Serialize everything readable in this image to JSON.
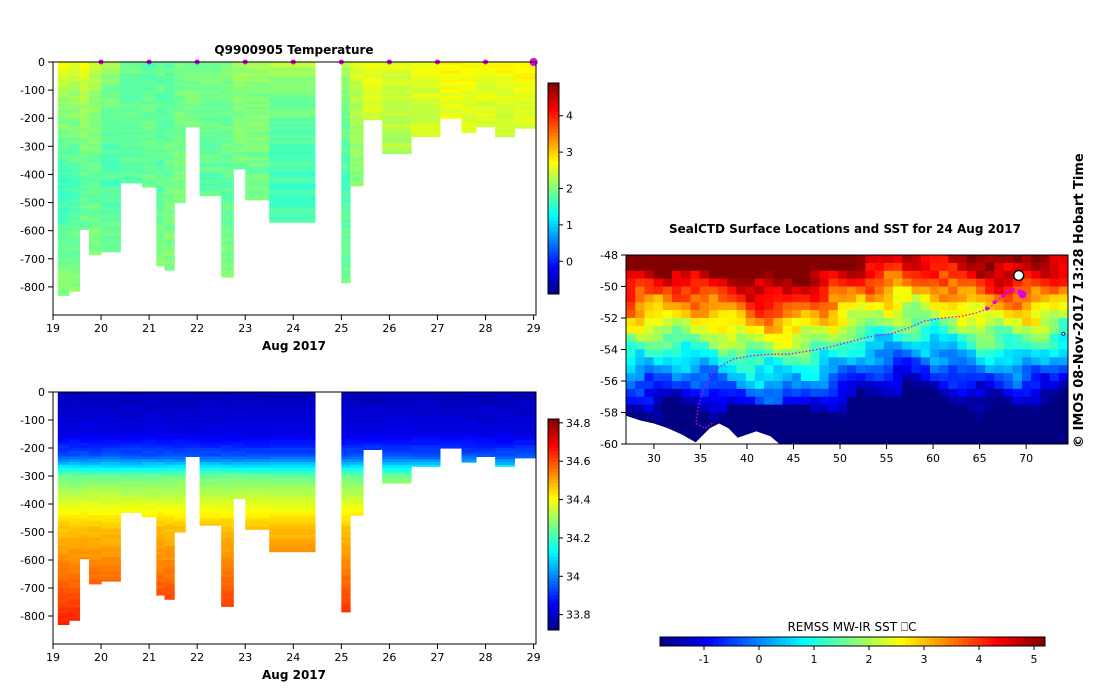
{
  "side_label": "© IMOS 08-Nov-2017 13:28 Hobart Time",
  "chart_data": [
    {
      "id": "temperature",
      "type": "heatmap",
      "title": "Q9900905  Temperature",
      "xlabel": "Aug 2017",
      "ylabel": "",
      "xlim": [
        19,
        29.05
      ],
      "ylim": [
        -900,
        0
      ],
      "xticks": [
        19,
        20,
        21,
        22,
        23,
        24,
        25,
        26,
        27,
        28,
        29
      ],
      "yticks": [
        0,
        -100,
        -200,
        -300,
        -400,
        -500,
        -600,
        -700,
        -800
      ],
      "colorbar": {
        "min": -0.9,
        "max": 4.9,
        "ticks": [
          0,
          1,
          2,
          3,
          4
        ],
        "palette": "jet"
      },
      "profile_markers": [
        20.0,
        21.0,
        22.0,
        23.0,
        24.0,
        25.0,
        26.0,
        27.0,
        28.0,
        29.0
      ],
      "profiles": [
        {
          "x0": 19.1,
          "x1": 19.33,
          "maxDepth": 830,
          "top": 2.8,
          "mid": 1.6,
          "deep": 2.1
        },
        {
          "x0": 19.33,
          "x1": 19.55,
          "maxDepth": 815,
          "top": 2.6,
          "mid": 1.7,
          "deep": 2.1
        },
        {
          "x0": 19.55,
          "x1": 19.75,
          "maxDepth": 595,
          "top": 2.7,
          "mid": 1.8,
          "deep": 2.1
        },
        {
          "x0": 19.75,
          "x1": 20.0,
          "maxDepth": 685,
          "top": 2.5,
          "mid": 1.8,
          "deep": 2.2
        },
        {
          "x0": 20.0,
          "x1": 20.4,
          "maxDepth": 675,
          "top": 2.2,
          "mid": 1.7,
          "deep": 2.2
        },
        {
          "x0": 20.4,
          "x1": 20.85,
          "maxDepth": 430,
          "top": 1.9,
          "mid": 1.8,
          "deep": 2.0
        },
        {
          "x0": 20.85,
          "x1": 21.15,
          "maxDepth": 445,
          "top": 1.8,
          "mid": 1.9,
          "deep": 2.0
        },
        {
          "x0": 21.15,
          "x1": 21.32,
          "maxDepth": 725,
          "top": 1.9,
          "mid": 1.8,
          "deep": 2.1
        },
        {
          "x0": 21.32,
          "x1": 21.52,
          "maxDepth": 740,
          "top": 1.8,
          "mid": 1.9,
          "deep": 2.1
        },
        {
          "x0": 21.52,
          "x1": 21.75,
          "maxDepth": 500,
          "top": 1.9,
          "mid": 2.0,
          "deep": 2.1
        },
        {
          "x0": 21.75,
          "x1": 22.05,
          "maxDepth": 230,
          "top": 1.9,
          "mid": 2.0,
          "deep": 2.0
        },
        {
          "x0": 22.05,
          "x1": 22.5,
          "maxDepth": 475,
          "top": 2.0,
          "mid": 1.8,
          "deep": 2.1
        },
        {
          "x0": 22.5,
          "x1": 22.75,
          "maxDepth": 765,
          "top": 2.1,
          "mid": 1.8,
          "deep": 2.1
        },
        {
          "x0": 22.75,
          "x1": 23.0,
          "maxDepth": 380,
          "top": 2.2,
          "mid": 1.9,
          "deep": 2.0
        },
        {
          "x0": 23.0,
          "x1": 23.5,
          "maxDepth": 490,
          "top": 2.2,
          "mid": 1.9,
          "deep": 2.1
        },
        {
          "x0": 23.5,
          "x1": 24.45,
          "maxDepth": 570,
          "top": 2.3,
          "mid": 1.6,
          "deep": 2.0
        },
        {
          "x0": 25.0,
          "x1": 25.18,
          "maxDepth": 785,
          "top": 2.3,
          "mid": 1.7,
          "deep": 2.0
        },
        {
          "x0": 25.18,
          "x1": 25.45,
          "maxDepth": 440,
          "top": 2.6,
          "mid": 2.0,
          "deep": 2.0
        },
        {
          "x0": 25.45,
          "x1": 25.85,
          "maxDepth": 205,
          "top": 2.7,
          "mid": 2.3,
          "deep": 2.3
        },
        {
          "x0": 25.85,
          "x1": 26.45,
          "maxDepth": 325,
          "top": 2.6,
          "mid": 2.2,
          "deep": 2.2
        },
        {
          "x0": 26.45,
          "x1": 27.05,
          "maxDepth": 265,
          "top": 2.7,
          "mid": 2.3,
          "deep": 2.3
        },
        {
          "x0": 27.05,
          "x1": 27.5,
          "maxDepth": 200,
          "top": 2.8,
          "mid": 2.5,
          "deep": 2.5
        },
        {
          "x0": 27.5,
          "x1": 27.8,
          "maxDepth": 250,
          "top": 2.8,
          "mid": 2.4,
          "deep": 2.4
        },
        {
          "x0": 27.8,
          "x1": 28.2,
          "maxDepth": 230,
          "top": 2.7,
          "mid": 2.4,
          "deep": 2.4
        },
        {
          "x0": 28.2,
          "x1": 28.6,
          "maxDepth": 265,
          "top": 2.8,
          "mid": 2.3,
          "deep": 2.3
        },
        {
          "x0": 28.6,
          "x1": 29.05,
          "maxDepth": 235,
          "top": 2.8,
          "mid": 2.4,
          "deep": 2.4
        }
      ]
    },
    {
      "id": "salinity",
      "type": "heatmap",
      "title": "",
      "xlabel": "Aug 2017",
      "ylabel": "",
      "xlim": [
        19,
        29.05
      ],
      "ylim": [
        -900,
        0
      ],
      "xticks": [
        19,
        20,
        21,
        22,
        23,
        24,
        25,
        26,
        27,
        28,
        29
      ],
      "yticks": [
        0,
        -100,
        -200,
        -300,
        -400,
        -500,
        -600,
        -700,
        -800
      ],
      "colorbar": {
        "min": 33.72,
        "max": 34.82,
        "ticks": [
          33.8,
          34,
          34.2,
          34.4,
          34.6,
          34.8
        ],
        "palette": "jet"
      },
      "profiles": [
        {
          "x0": 19.1,
          "x1": 19.33,
          "maxDepth": 830
        },
        {
          "x0": 19.33,
          "x1": 19.55,
          "maxDepth": 815
        },
        {
          "x0": 19.55,
          "x1": 19.75,
          "maxDepth": 595
        },
        {
          "x0": 19.75,
          "x1": 20.0,
          "maxDepth": 685
        },
        {
          "x0": 20.0,
          "x1": 20.4,
          "maxDepth": 675
        },
        {
          "x0": 20.4,
          "x1": 20.85,
          "maxDepth": 430
        },
        {
          "x0": 20.85,
          "x1": 21.15,
          "maxDepth": 445
        },
        {
          "x0": 21.15,
          "x1": 21.32,
          "maxDepth": 725
        },
        {
          "x0": 21.32,
          "x1": 21.52,
          "maxDepth": 740
        },
        {
          "x0": 21.52,
          "x1": 21.75,
          "maxDepth": 500
        },
        {
          "x0": 21.75,
          "x1": 22.05,
          "maxDepth": 230
        },
        {
          "x0": 22.05,
          "x1": 22.5,
          "maxDepth": 475
        },
        {
          "x0": 22.5,
          "x1": 22.75,
          "maxDepth": 765
        },
        {
          "x0": 22.75,
          "x1": 23.0,
          "maxDepth": 380
        },
        {
          "x0": 23.0,
          "x1": 23.5,
          "maxDepth": 490
        },
        {
          "x0": 23.5,
          "x1": 24.45,
          "maxDepth": 570
        },
        {
          "x0": 25.0,
          "x1": 25.18,
          "maxDepth": 785
        },
        {
          "x0": 25.18,
          "x1": 25.45,
          "maxDepth": 440
        },
        {
          "x0": 25.45,
          "x1": 25.85,
          "maxDepth": 205
        },
        {
          "x0": 25.85,
          "x1": 26.45,
          "maxDepth": 325
        },
        {
          "x0": 26.45,
          "x1": 27.05,
          "maxDepth": 265
        },
        {
          "x0": 27.05,
          "x1": 27.5,
          "maxDepth": 200
        },
        {
          "x0": 27.5,
          "x1": 27.8,
          "maxDepth": 250
        },
        {
          "x0": 27.8,
          "x1": 28.2,
          "maxDepth": 230
        },
        {
          "x0": 28.2,
          "x1": 28.6,
          "maxDepth": 265
        },
        {
          "x0": 28.6,
          "x1": 29.05,
          "maxDepth": 235
        }
      ]
    },
    {
      "id": "sst_map",
      "type": "heatmap",
      "title": "SealCTD Surface Locations and SST for 24 Aug 2017",
      "xlabel": "",
      "ylabel": "",
      "xlim": [
        27,
        74.5
      ],
      "ylim": [
        -60,
        -48
      ],
      "xticks": [
        30,
        35,
        40,
        45,
        50,
        55,
        60,
        65,
        70
      ],
      "yticks": [
        -48,
        -50,
        -52,
        -54,
        -56,
        -58,
        -60
      ],
      "colorbar": {
        "min": -1.8,
        "max": 5.2,
        "ticks": [
          -1,
          0,
          1,
          2,
          3,
          4,
          5
        ],
        "palette": "jet",
        "label": "REMSS MW-IR SST ⎕C",
        "orientation": "horizontal"
      },
      "track": [
        [
          69.6,
          -50.5
        ],
        [
          68.4,
          -50.3
        ],
        [
          67.3,
          -50.7
        ],
        [
          66.0,
          -51.4
        ],
        [
          64.5,
          -51.7
        ],
        [
          63.0,
          -51.9
        ],
        [
          61.0,
          -52.0
        ],
        [
          59.0,
          -52.2
        ],
        [
          57.5,
          -52.6
        ],
        [
          55.5,
          -53.0
        ],
        [
          53.0,
          -53.2
        ],
        [
          50.5,
          -53.6
        ],
        [
          48.5,
          -53.9
        ],
        [
          46.5,
          -54.1
        ],
        [
          44.5,
          -54.3
        ],
        [
          42.5,
          -54.3
        ],
        [
          40.5,
          -54.4
        ],
        [
          38.5,
          -54.6
        ],
        [
          36.5,
          -55.3
        ],
        [
          35.5,
          -56.3
        ],
        [
          34.8,
          -57.5
        ],
        [
          34.5,
          -58.7
        ],
        [
          35.5,
          -59.0
        ],
        [
          36.5,
          -58.6
        ]
      ],
      "recent_positions": [
        [
          69.6,
          -50.5
        ],
        [
          69.3,
          -50.3
        ],
        [
          68.6,
          -50.2
        ],
        [
          68.0,
          -50.3
        ],
        [
          67.5,
          -50.6
        ],
        [
          66.6,
          -51.0
        ],
        [
          65.8,
          -51.4
        ]
      ],
      "current_position": [
        69.6,
        -50.5
      ]
    }
  ]
}
